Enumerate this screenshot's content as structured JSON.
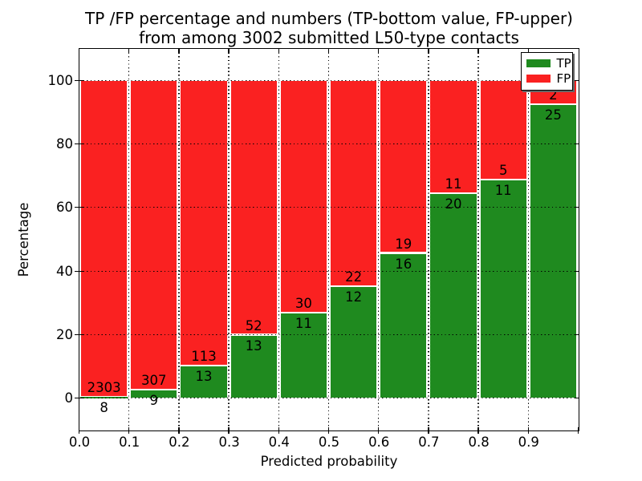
{
  "chart_data": {
    "type": "bar",
    "stacked": "percent",
    "title_lines": [
      "TP /FP percentage and numbers (TP-bottom value, FP-upper)",
      "from among 3002 submitted L50-type contacts"
    ],
    "xlabel": "Predicted probability",
    "ylabel": "Percentage",
    "categories": [
      "0.0-0.1",
      "0.1-0.2",
      "0.2-0.3",
      "0.3-0.4",
      "0.4-0.5",
      "0.5-0.6",
      "0.6-0.7",
      "0.7-0.8",
      "0.8-0.9",
      "0.9-1.0"
    ],
    "series": [
      {
        "name": "TP",
        "color": "#1f8a1f",
        "values": [
          8,
          9,
          13,
          13,
          11,
          12,
          16,
          20,
          11,
          25
        ]
      },
      {
        "name": "FP",
        "color": "#fa2121",
        "values": [
          2303,
          307,
          113,
          52,
          30,
          22,
          19,
          11,
          5,
          2
        ]
      }
    ],
    "x_ticks": [
      "0.0",
      "0.1",
      "0.2",
      "0.3",
      "0.4",
      "0.5",
      "0.6",
      "0.7",
      "0.8",
      "0.9"
    ],
    "y_ticks": [
      0,
      20,
      40,
      60,
      80,
      100
    ],
    "xlim": [
      0.0,
      1.0
    ],
    "ylim": [
      -10,
      110
    ],
    "grid": true,
    "grid_style": "dotted",
    "bar_edge_color": "#ffffff",
    "legend_position": "upper-right",
    "legend_entries": [
      "TP",
      "FP"
    ]
  }
}
